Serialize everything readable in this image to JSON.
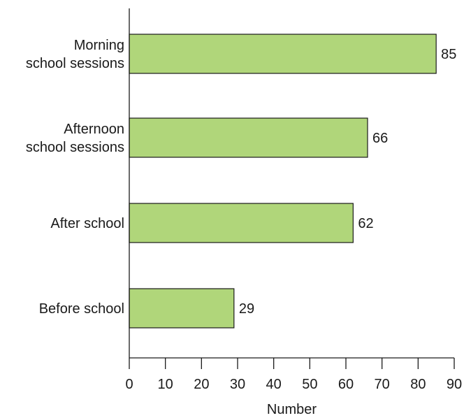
{
  "chart_data": {
    "type": "bar",
    "orientation": "horizontal",
    "categories": [
      [
        "Morning",
        "school sessions"
      ],
      [
        "Afternoon",
        "school sessions"
      ],
      [
        "After school"
      ],
      [
        "Before school"
      ]
    ],
    "values": [
      85,
      66,
      62,
      29
    ],
    "title": "",
    "xlabel": "Number",
    "ylabel": "",
    "xlim": [
      0,
      90
    ],
    "xticks": [
      0,
      10,
      20,
      30,
      40,
      50,
      60,
      70,
      80,
      90
    ],
    "grid": false,
    "bar_color": "#b0d67a",
    "edge_color": "#1a1a1a",
    "data_labels": true
  }
}
